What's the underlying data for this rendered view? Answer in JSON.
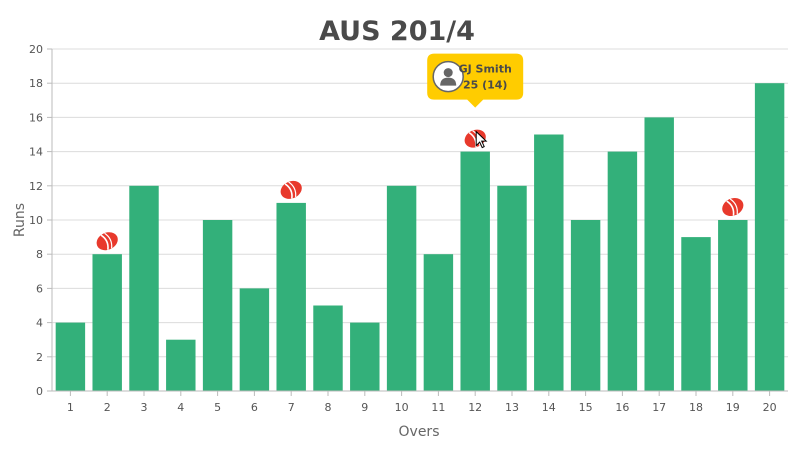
{
  "chart_data": {
    "type": "bar",
    "title": "AUS 201/4",
    "xlabel": "Overs",
    "ylabel": "Runs",
    "categories": [
      "1",
      "2",
      "3",
      "4",
      "5",
      "6",
      "7",
      "8",
      "9",
      "10",
      "11",
      "12",
      "13",
      "14",
      "15",
      "16",
      "17",
      "18",
      "19",
      "20"
    ],
    "values": [
      4,
      8,
      12,
      3,
      10,
      6,
      11,
      5,
      4,
      12,
      8,
      14,
      12,
      15,
      10,
      14,
      16,
      9,
      10,
      18
    ],
    "ylim": [
      0,
      20
    ],
    "yticks": [
      0,
      2,
      4,
      6,
      8,
      10,
      12,
      14,
      16,
      18,
      20
    ],
    "grid": true,
    "bar_color": "#33b07a",
    "wicket_overs": [
      "2",
      "7",
      "12",
      "19"
    ],
    "wicket_marker_color": "#e8392c",
    "tooltip": {
      "over": "12",
      "player": "GJ Smith",
      "score": "25 (14)",
      "background": "#ffcc00"
    }
  }
}
